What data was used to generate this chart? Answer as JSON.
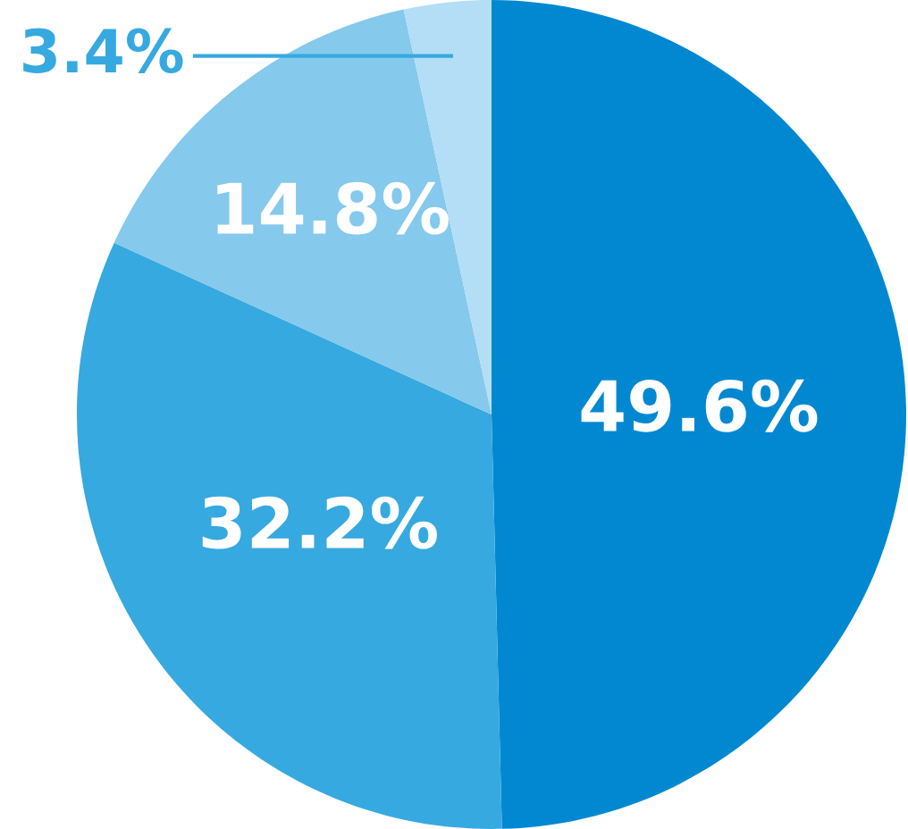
{
  "chart_data": {
    "type": "pie",
    "categories": [
      null,
      null,
      null,
      null
    ],
    "values": [
      49.6,
      32.2,
      14.8,
      3.4
    ],
    "colors": [
      "#0288d1",
      "#36a9e0",
      "#85c9ec",
      "#b3def5"
    ],
    "value_labels": [
      "49.6%",
      "32.2%",
      "14.8%",
      "3.4%"
    ]
  }
}
